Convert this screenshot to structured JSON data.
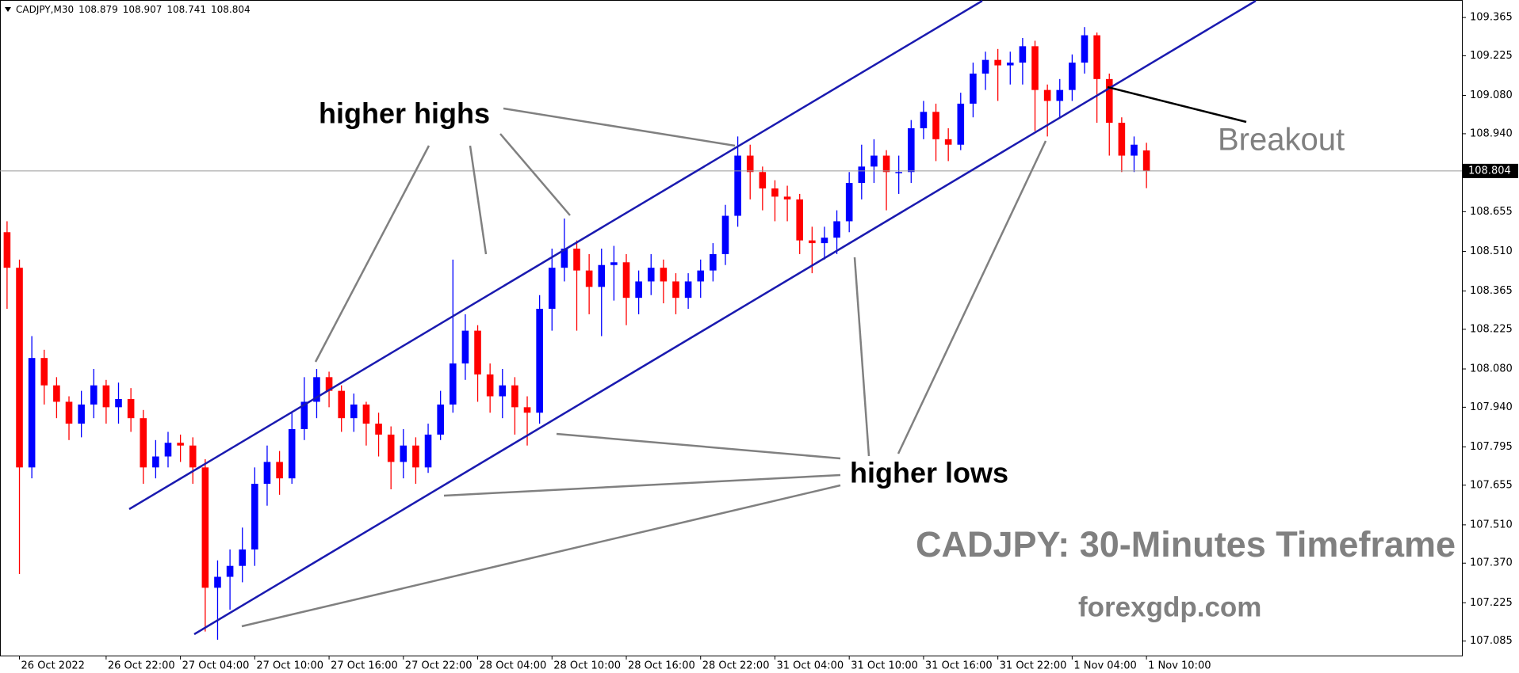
{
  "chart_data": {
    "type": "candlestick",
    "symbol": "CADJPY,M30",
    "header_values": [
      108.879,
      108.907,
      108.741,
      108.804
    ],
    "title": "CADJPY: 30-Minutes Timeframe",
    "watermark": "forexgdp.com",
    "annotations": [
      "higher highs",
      "higher lows",
      "Breakout"
    ],
    "up_color": "#0000ff",
    "down_color": "#ff0000",
    "price_line": 108.804,
    "ylim": [
      107.032,
      109.429
    ],
    "yticks": [
      109.365,
      109.225,
      {
        "value": 109.08,
        "label": "109.080"
      },
      {
        "value": 108.94,
        "label": "108.940"
      },
      108.655,
      {
        "value": 108.51,
        "label": "108.510"
      },
      108.365,
      108.225,
      {
        "value": 108.08,
        "label": "108.080"
      },
      {
        "value": 107.94,
        "label": "107.940"
      },
      107.795,
      107.655,
      {
        "value": 107.51,
        "label": "107.510"
      },
      {
        "value": 107.37,
        "label": "107.370"
      },
      107.225,
      107.085
    ],
    "xlim": [
      -0.57,
      117.47
    ],
    "xticks": [
      {
        "value": 1,
        "label": "26 Oct 2022"
      },
      {
        "value": 8,
        "label": "26 Oct 22:00"
      },
      {
        "value": 14,
        "label": "27 Oct 04:00"
      },
      {
        "value": 20,
        "label": "27 Oct 10:00"
      },
      {
        "value": 26,
        "label": "27 Oct 16:00"
      },
      {
        "value": 32,
        "label": "27 Oct 22:00"
      },
      {
        "value": 38,
        "label": "28 Oct 04:00"
      },
      {
        "value": 44,
        "label": "28 Oct 10:00"
      },
      {
        "value": 50,
        "label": "28 Oct 16:00"
      },
      {
        "value": 56,
        "label": "28 Oct 22:00"
      },
      {
        "value": 62,
        "label": "31 Oct 04:00"
      },
      {
        "value": 68,
        "label": "31 Oct 10:00"
      },
      {
        "value": 74,
        "label": "31 Oct 16:00"
      },
      {
        "value": 80,
        "label": "31 Oct 22:00"
      },
      {
        "value": 86,
        "label": "1 Nov 04:00"
      },
      {
        "value": 92,
        "label": "1 Nov 10:00"
      }
    ],
    "open": [
      108.58,
      108.45,
      107.72,
      108.12,
      108.02,
      107.96,
      107.88,
      107.95,
      108.02,
      107.94,
      107.97,
      107.9,
      107.72,
      107.76,
      107.81,
      107.8,
      107.72,
      107.28,
      107.32,
      107.36,
      107.42,
      107.66,
      107.74,
      107.68,
      107.86,
      107.96,
      108.05,
      108.0,
      107.9,
      107.95,
      107.88,
      107.84,
      107.74,
      107.8,
      107.72,
      107.84,
      107.95,
      108.1,
      108.22,
      108.06,
      107.98,
      108.02,
      107.94,
      107.92,
      108.3,
      108.45,
      108.52,
      108.44,
      108.38,
      108.46,
      108.47,
      108.34,
      108.4,
      108.45,
      108.4,
      108.34,
      108.4,
      108.44,
      108.5,
      108.64,
      108.86,
      108.8,
      108.74,
      108.71,
      108.7,
      108.55,
      108.54,
      108.56,
      108.62,
      108.76,
      108.82,
      108.86,
      108.8,
      108.8,
      108.96,
      109.02,
      108.92,
      108.9,
      109.05,
      109.16,
      109.21,
      109.19,
      109.2,
      109.26,
      109.1,
      109.06,
      109.1,
      109.2,
      109.3,
      109.14,
      108.98,
      108.86,
      108.879
    ],
    "high": [
      108.62,
      108.48,
      108.2,
      108.15,
      108.05,
      107.98,
      108.0,
      108.08,
      108.04,
      108.03,
      108.01,
      107.93,
      107.82,
      107.85,
      107.84,
      107.83,
      107.75,
      107.38,
      107.42,
      107.5,
      107.72,
      107.8,
      107.78,
      107.92,
      108.05,
      108.08,
      108.07,
      108.02,
      107.99,
      107.96,
      107.92,
      107.87,
      107.86,
      107.83,
      107.88,
      108.0,
      108.48,
      108.28,
      108.24,
      108.1,
      108.08,
      108.05,
      107.98,
      108.35,
      108.52,
      108.63,
      108.55,
      108.5,
      108.52,
      108.53,
      108.5,
      108.44,
      108.5,
      108.48,
      108.43,
      108.43,
      108.48,
      108.54,
      108.68,
      108.93,
      108.9,
      108.82,
      108.77,
      108.75,
      108.72,
      108.6,
      108.6,
      108.66,
      108.8,
      108.9,
      108.92,
      108.88,
      108.86,
      108.99,
      109.06,
      109.05,
      108.96,
      109.09,
      109.2,
      109.24,
      109.25,
      109.24,
      109.29,
      109.28,
      109.12,
      109.14,
      109.23,
      109.33,
      109.31,
      109.16,
      109.0,
      108.93,
      108.907
    ],
    "low": [
      108.3,
      107.33,
      107.68,
      107.95,
      107.9,
      107.82,
      107.83,
      107.9,
      107.88,
      107.88,
      107.85,
      107.66,
      107.68,
      107.72,
      107.74,
      107.66,
      107.12,
      107.09,
      107.2,
      107.3,
      107.36,
      107.58,
      107.62,
      107.66,
      107.82,
      107.9,
      107.94,
      107.85,
      107.85,
      107.8,
      107.76,
      107.64,
      107.68,
      107.66,
      107.7,
      107.82,
      107.92,
      108.04,
      107.96,
      107.92,
      107.9,
      107.84,
      107.8,
      107.88,
      108.22,
      108.4,
      108.22,
      108.28,
      108.2,
      108.33,
      108.24,
      108.28,
      108.35,
      108.32,
      108.28,
      108.3,
      108.34,
      108.4,
      108.46,
      108.6,
      108.7,
      108.66,
      108.62,
      108.62,
      108.5,
      108.43,
      108.48,
      108.5,
      108.58,
      108.7,
      108.76,
      108.66,
      108.72,
      108.76,
      108.92,
      108.84,
      108.84,
      108.88,
      109.0,
      109.1,
      109.06,
      109.12,
      109.12,
      108.95,
      108.93,
      109.0,
      109.06,
      109.16,
      108.98,
      108.86,
      108.8,
      108.8,
      108.741
    ],
    "close": [
      108.45,
      107.72,
      108.12,
      108.02,
      107.96,
      107.88,
      107.95,
      108.02,
      107.94,
      107.97,
      107.9,
      107.72,
      107.76,
      107.81,
      107.8,
      107.72,
      107.28,
      107.32,
      107.36,
      107.42,
      107.66,
      107.74,
      107.68,
      107.86,
      107.96,
      108.05,
      108.0,
      107.9,
      107.95,
      107.88,
      107.84,
      107.74,
      107.8,
      107.72,
      107.84,
      107.95,
      108.1,
      108.22,
      108.06,
      107.98,
      108.02,
      107.94,
      107.92,
      108.3,
      108.45,
      108.52,
      108.44,
      108.38,
      108.46,
      108.47,
      108.34,
      108.4,
      108.45,
      108.4,
      108.34,
      108.4,
      108.44,
      108.5,
      108.64,
      108.86,
      108.8,
      108.74,
      108.71,
      108.7,
      108.55,
      108.54,
      108.56,
      108.62,
      108.76,
      108.82,
      108.86,
      108.8,
      108.8,
      108.96,
      109.02,
      108.92,
      108.9,
      109.05,
      109.16,
      109.21,
      109.19,
      109.2,
      109.26,
      109.1,
      109.06,
      109.1,
      109.2,
      109.3,
      109.14,
      108.98,
      108.86,
      108.9,
      108.804
    ]
  }
}
